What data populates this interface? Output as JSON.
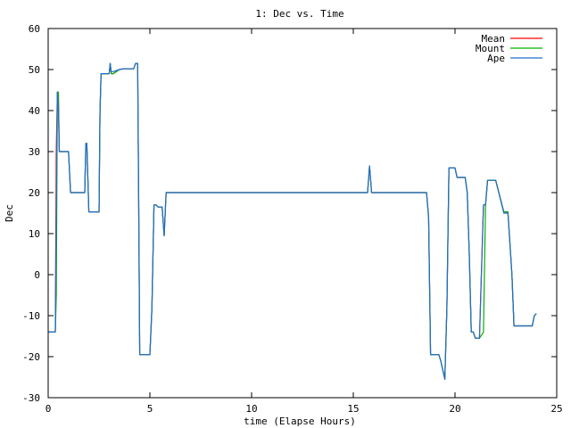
{
  "chart_data": {
    "type": "line",
    "title": "1: Dec vs. Time",
    "xlabel": "time (Elapse Hours)",
    "ylabel": "Dec",
    "xlim": [
      0,
      25
    ],
    "ylim": [
      -30,
      60
    ],
    "xticks": [
      0,
      5,
      10,
      15,
      20,
      25
    ],
    "yticks": [
      -30,
      -20,
      -10,
      0,
      10,
      20,
      30,
      40,
      50,
      60
    ],
    "grid": false,
    "legend_position": "top-right",
    "series": [
      {
        "name": "Mean",
        "color": "#ff0000",
        "x": [
          0,
          0.35,
          0.4,
          0.45,
          0.5,
          0.55,
          0.6,
          1.0,
          1.1,
          1.7,
          1.8,
          1.85,
          1.9,
          2.0,
          2.5,
          2.55,
          2.6,
          3.0,
          3.05,
          3.1,
          3.2,
          3.5,
          3.7,
          4.2,
          4.3,
          4.4,
          4.45,
          4.5,
          5.0,
          5.1,
          5.2,
          5.3,
          5.4,
          5.5,
          5.6,
          5.7,
          5.8,
          6.0,
          15.7,
          15.8,
          15.9,
          16.0,
          18.6,
          18.7,
          18.8,
          19.0,
          19.2,
          19.3,
          19.5,
          19.6,
          19.7,
          20.0,
          20.1,
          20.5,
          20.6,
          20.7,
          20.8,
          20.9,
          21.0,
          21.2,
          21.4,
          21.5,
          21.6,
          21.7,
          21.8,
          22.0,
          22.4,
          22.5,
          22.6,
          22.8,
          22.9,
          23.0,
          23.5,
          23.8,
          23.9,
          24.0
        ],
        "y": [
          -14,
          -14,
          30,
          44.5,
          44.5,
          30,
          30,
          30,
          20,
          20,
          20,
          32,
          32,
          15.3,
          15.3,
          40,
          49,
          49,
          51.5,
          49,
          49,
          50,
          50.2,
          50.2,
          51.5,
          51.5,
          16,
          -19.5,
          -19.5,
          -8,
          17,
          17,
          16.5,
          16.5,
          16.5,
          9.5,
          20,
          20,
          20,
          26.5,
          20,
          20,
          20,
          14,
          -19.5,
          -19.5,
          -19.5,
          -21,
          -25.5,
          -8,
          26,
          26,
          23.7,
          23.7,
          20,
          5,
          -14,
          -14,
          -15.5,
          -15.5,
          17,
          17,
          23,
          23,
          23,
          23,
          15.3,
          15.3,
          15.3,
          0,
          -12.5,
          -12.5,
          -12.5,
          -12.5,
          -10,
          -9.5
        ]
      },
      {
        "name": "Mount",
        "color": "#00b000",
        "x": [
          0,
          0.35,
          0.4,
          0.45,
          0.5,
          0.55,
          0.6,
          1.0,
          1.1,
          1.7,
          1.8,
          1.85,
          1.9,
          2.0,
          2.5,
          2.55,
          2.6,
          3.0,
          3.05,
          3.1,
          3.2,
          3.5,
          3.7,
          4.2,
          4.3,
          4.4,
          4.45,
          4.5,
          5.0,
          5.1,
          5.2,
          5.3,
          5.4,
          5.5,
          5.6,
          5.7,
          5.8,
          6.0,
          15.7,
          15.8,
          15.9,
          16.0,
          18.6,
          18.7,
          18.8,
          19.0,
          19.2,
          19.3,
          19.5,
          19.6,
          19.7,
          20.0,
          20.1,
          20.5,
          20.6,
          20.7,
          20.8,
          20.9,
          21.0,
          21.2,
          21.4,
          21.5,
          21.6,
          21.7,
          21.8,
          22.0,
          22.4,
          22.5,
          22.6,
          22.8,
          22.9,
          23.0,
          23.5,
          23.8,
          23.9,
          24.0
        ],
        "y": [
          -14,
          -14,
          -5,
          44.5,
          44.5,
          30,
          30,
          30,
          20,
          20,
          20,
          32,
          32,
          15.3,
          15.3,
          40,
          49,
          49,
          51.5,
          49,
          49,
          50,
          50.2,
          50.2,
          51.5,
          51.5,
          16,
          -19.5,
          -19.5,
          -8,
          17,
          17,
          16.5,
          16.5,
          16.5,
          9.5,
          20,
          20,
          20,
          26.5,
          20,
          20,
          20,
          14,
          -19.5,
          -19.5,
          -19.5,
          -21,
          -25.5,
          -8,
          26,
          26,
          23.7,
          23.7,
          20,
          5,
          -14,
          -14,
          -15.5,
          -15.5,
          -14,
          17,
          23,
          23,
          23,
          23,
          15.3,
          15.3,
          15.3,
          0,
          -12.5,
          -12.5,
          -12.5,
          -12.5,
          -10,
          -9.5
        ]
      },
      {
        "name": "Ape",
        "color": "#1f6fd0",
        "x": [
          0,
          0.35,
          0.4,
          0.45,
          0.5,
          0.55,
          0.6,
          1.0,
          1.1,
          1.7,
          1.8,
          1.85,
          1.9,
          2.0,
          2.5,
          2.55,
          2.6,
          3.0,
          3.05,
          3.1,
          3.2,
          3.5,
          3.7,
          4.2,
          4.3,
          4.4,
          4.45,
          4.5,
          5.0,
          5.1,
          5.2,
          5.3,
          5.4,
          5.5,
          5.6,
          5.7,
          5.8,
          6.0,
          15.7,
          15.8,
          15.9,
          16.0,
          18.6,
          18.7,
          18.8,
          19.0,
          19.2,
          19.3,
          19.5,
          19.6,
          19.7,
          20.0,
          20.1,
          20.5,
          20.6,
          20.7,
          20.8,
          20.9,
          21.0,
          21.2,
          21.4,
          21.5,
          21.6,
          21.7,
          21.8,
          22.0,
          22.4,
          22.5,
          22.6,
          22.8,
          22.9,
          23.0,
          23.5,
          23.8,
          23.9,
          24.0
        ],
        "y": [
          -14,
          -14,
          14,
          44.5,
          40,
          30,
          30,
          30,
          20,
          20,
          20,
          32,
          32,
          15.3,
          15.3,
          40,
          49,
          49,
          51.5,
          49.5,
          49.5,
          50,
          50.2,
          50.2,
          51.5,
          51.5,
          16,
          -19.5,
          -19.5,
          -8,
          17,
          17,
          16.5,
          16.5,
          16.5,
          9.5,
          20,
          20,
          20,
          26.5,
          20,
          20,
          20,
          14,
          -19.5,
          -19.5,
          -19.5,
          -21,
          -25.5,
          -8,
          26,
          26,
          23.7,
          23.7,
          20,
          5,
          -14,
          -14,
          -15.5,
          -15.5,
          17,
          17,
          23,
          23,
          23,
          23,
          15,
          15,
          15,
          0,
          -12.5,
          -12.5,
          -12.5,
          -12.5,
          -10,
          -9.5
        ]
      }
    ]
  }
}
